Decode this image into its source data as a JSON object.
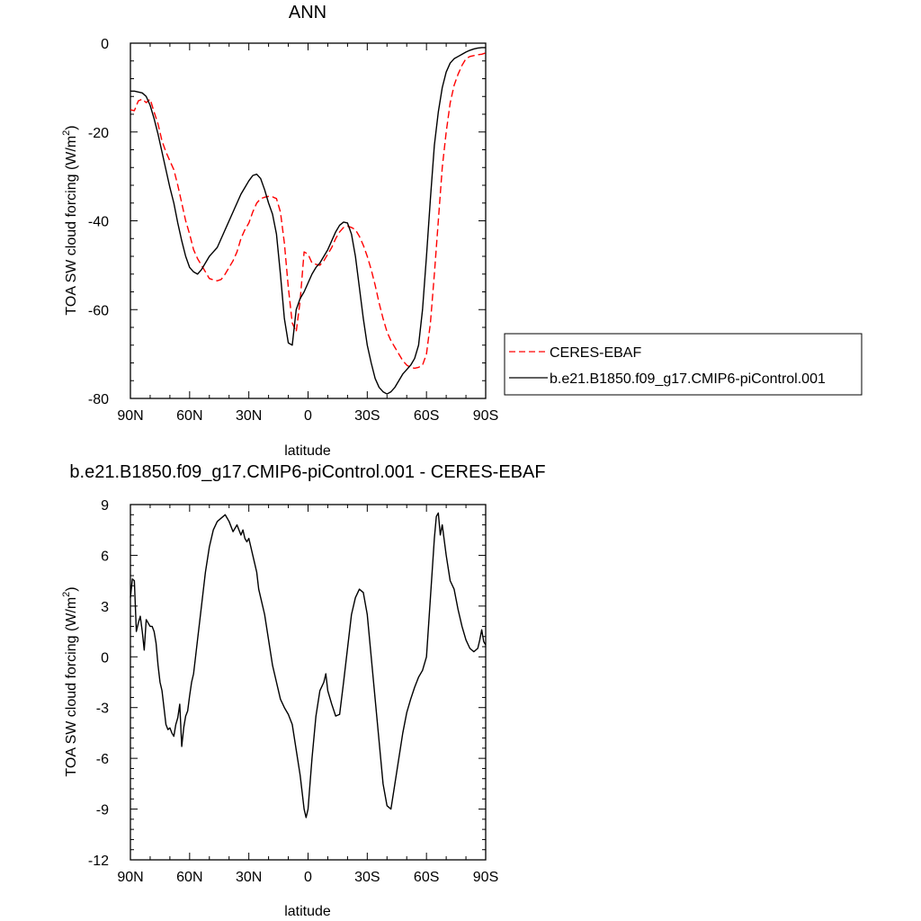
{
  "chart_data": [
    {
      "type": "line",
      "title": "ANN",
      "xlabel": "latitude",
      "ylabel": "TOA SW cloud forcing (W/m2)",
      "ylabel_main": "TOA SW cloud forcing (W/m",
      "ylabel_sup": "2",
      "ylabel_tail": ")",
      "xlim": [
        -90,
        90
      ],
      "ylim": [
        -80,
        0
      ],
      "x_ticks": [
        -90,
        -60,
        -30,
        0,
        30,
        60,
        90
      ],
      "x_tick_labels": [
        "90N",
        "60N",
        "30N",
        "0",
        "30S",
        "60S",
        "90S"
      ],
      "y_ticks": [
        0,
        -20,
        -40,
        -60,
        -80
      ],
      "y_tick_labels": [
        "0",
        "-20",
        "-40",
        "-60",
        "-80"
      ],
      "legend_position": "right",
      "series": [
        {
          "name": "CERES-EBAF",
          "color": "#ff0000",
          "dash": "dashed",
          "x": [
            -90,
            -88,
            -86,
            -84,
            -82,
            -80,
            -78,
            -76,
            -74,
            -72,
            -70,
            -68,
            -66,
            -64,
            -62,
            -60,
            -58,
            -56,
            -54,
            -52,
            -50,
            -48,
            -46,
            -44,
            -42,
            -40,
            -38,
            -36,
            -34,
            -32,
            -30,
            -28,
            -26,
            -24,
            -22,
            -20,
            -18,
            -16,
            -14,
            -12,
            -10,
            -8,
            -6,
            -4,
            -2,
            0,
            2,
            4,
            6,
            8,
            10,
            12,
            14,
            16,
            18,
            20,
            22,
            24,
            26,
            28,
            30,
            32,
            34,
            36,
            38,
            40,
            42,
            44,
            46,
            48,
            50,
            52,
            54,
            56,
            58,
            60,
            62,
            64,
            66,
            68,
            70,
            72,
            74,
            76,
            78,
            80,
            82,
            84,
            86,
            88,
            90
          ],
          "values": [
            -15.0,
            -15.2,
            -13.0,
            -12.6,
            -13.4,
            -12.6,
            -15.5,
            -18.2,
            -22.0,
            -24.5,
            -26.5,
            -28.5,
            -32.0,
            -36.0,
            -40.0,
            -43.0,
            -46.5,
            -48.5,
            -50.0,
            -51.5,
            -53.0,
            -53.3,
            -53.5,
            -53.2,
            -52.0,
            -50.5,
            -49.0,
            -47.0,
            -44.0,
            -42.0,
            -40.5,
            -38.0,
            -36.0,
            -35.0,
            -34.7,
            -34.5,
            -34.6,
            -35.0,
            -38.0,
            -45.0,
            -55.0,
            -63.0,
            -65.0,
            -58.0,
            -47.0,
            -47.5,
            -49.5,
            -49.8,
            -50.0,
            -49.0,
            -47.5,
            -46.0,
            -44.0,
            -42.5,
            -41.5,
            -41.2,
            -41.5,
            -42.0,
            -43.5,
            -45.5,
            -48.0,
            -51.0,
            -54.5,
            -58.5,
            -62.0,
            -65.0,
            -67.0,
            -68.5,
            -70.0,
            -71.5,
            -72.5,
            -73.0,
            -73.2,
            -73.0,
            -72.5,
            -70.0,
            -63.0,
            -52.0,
            -40.0,
            -28.0,
            -20.0,
            -13.5,
            -9.5,
            -7.0,
            -5.0,
            -3.5,
            -3.0,
            -2.8,
            -2.6,
            -2.5,
            -2.2
          ]
        },
        {
          "name": "b.e21.B1850.f09_g17.CMIP6-piControl.001",
          "color": "#000000",
          "dash": "solid",
          "x": [
            -90,
            -88,
            -86,
            -84,
            -82,
            -80,
            -78,
            -76,
            -74,
            -72,
            -70,
            -68,
            -66,
            -64,
            -62,
            -60,
            -58,
            -56,
            -54,
            -52,
            -50,
            -48,
            -46,
            -44,
            -42,
            -40,
            -38,
            -36,
            -34,
            -32,
            -30,
            -28,
            -26,
            -24,
            -22,
            -20,
            -18,
            -16,
            -14,
            -12,
            -10,
            -8,
            -6,
            -4,
            -2,
            0,
            2,
            4,
            6,
            8,
            10,
            12,
            14,
            16,
            18,
            20,
            22,
            24,
            26,
            28,
            30,
            32,
            34,
            36,
            38,
            40,
            42,
            44,
            46,
            48,
            50,
            52,
            54,
            56,
            58,
            60,
            62,
            64,
            66,
            68,
            70,
            72,
            74,
            76,
            78,
            80,
            82,
            84,
            86,
            88,
            90
          ],
          "values": [
            -10.8,
            -10.8,
            -11.0,
            -11.2,
            -12.0,
            -14.0,
            -17.0,
            -20.5,
            -24.5,
            -28.5,
            -32.5,
            -36.0,
            -40.5,
            -44.5,
            -48.0,
            -50.5,
            -51.5,
            -52.0,
            -51.0,
            -49.5,
            -48.0,
            -47.0,
            -46.0,
            -44.0,
            -42.0,
            -40.0,
            -38.0,
            -36.0,
            -34.0,
            -32.5,
            -31.0,
            -29.8,
            -29.5,
            -30.5,
            -33.0,
            -36.0,
            -38.5,
            -43.0,
            -52.0,
            -62.0,
            -67.5,
            -68.0,
            -60.0,
            -57.5,
            -56.0,
            -54.0,
            -52.0,
            -50.5,
            -49.5,
            -48.0,
            -46.5,
            -44.5,
            -42.5,
            -41.0,
            -40.3,
            -40.5,
            -43.0,
            -48.0,
            -55.0,
            -62.0,
            -68.0,
            -72.0,
            -75.5,
            -77.5,
            -78.5,
            -79.0,
            -78.5,
            -77.5,
            -76.0,
            -74.5,
            -73.5,
            -72.5,
            -71.0,
            -68.0,
            -60.0,
            -48.0,
            -35.0,
            -23.0,
            -15.5,
            -10.0,
            -6.5,
            -4.5,
            -3.5,
            -3.0,
            -2.5,
            -2.0,
            -1.6,
            -1.3,
            -1.1,
            -1.0,
            -1.0
          ]
        }
      ]
    },
    {
      "type": "line",
      "title": "b.e21.B1850.f09_g17.CMIP6-piControl.001 - CERES-EBAF",
      "xlabel": "latitude",
      "ylabel": "TOA SW cloud forcing (W/m2)",
      "ylabel_main": "TOA SW cloud forcing (W/m",
      "ylabel_sup": "2",
      "ylabel_tail": ")",
      "xlim": [
        -90,
        90
      ],
      "ylim": [
        -12,
        9
      ],
      "x_ticks": [
        -90,
        -60,
        -30,
        0,
        30,
        60,
        90
      ],
      "x_tick_labels": [
        "90N",
        "60N",
        "30N",
        "0",
        "30S",
        "60S",
        "90S"
      ],
      "y_ticks": [
        9,
        6,
        3,
        0,
        -3,
        -6,
        -9,
        -12
      ],
      "y_tick_labels": [
        "9",
        "6",
        "3",
        "0",
        "-3",
        "-6",
        "-9",
        "-12"
      ],
      "series": [
        {
          "color": "#000000",
          "dash": "solid",
          "x": [
            -90,
            -89,
            -88,
            -87,
            -86,
            -85,
            -84,
            -83,
            -82,
            -81,
            -80,
            -79,
            -78,
            -77,
            -76,
            -75,
            -74,
            -73,
            -72,
            -71,
            -70,
            -69,
            -68,
            -67,
            -66,
            -65,
            -64,
            -63,
            -62,
            -61,
            -60,
            -59,
            -58,
            -57,
            -56,
            -55,
            -54,
            -53,
            -52,
            -50,
            -48,
            -46,
            -44,
            -42,
            -40,
            -38,
            -36,
            -35,
            -34,
            -33,
            -32,
            -31,
            -30,
            -29,
            -28,
            -27,
            -26,
            -25,
            -24,
            -22,
            -20,
            -18,
            -16,
            -14,
            -12,
            -10,
            -8,
            -6,
            -4,
            -3,
            -2,
            -1,
            0,
            1,
            2,
            4,
            6,
            8,
            9,
            10,
            12,
            14,
            16,
            18,
            20,
            22,
            24,
            26,
            28,
            30,
            32,
            34,
            36,
            38,
            40,
            42,
            44,
            46,
            48,
            50,
            52,
            54,
            56,
            58,
            60,
            62,
            64,
            65,
            66,
            67,
            68,
            70,
            72,
            74,
            76,
            78,
            80,
            82,
            84,
            86,
            87,
            88,
            89,
            90
          ],
          "values": [
            3.5,
            4.6,
            4.5,
            1.5,
            2.0,
            2.4,
            1.5,
            0.4,
            2.2,
            2.0,
            1.8,
            1.8,
            1.5,
            0.8,
            -0.5,
            -1.5,
            -2.0,
            -3.0,
            -4.0,
            -4.3,
            -4.2,
            -4.5,
            -4.7,
            -4.0,
            -3.6,
            -2.8,
            -5.3,
            -4.2,
            -3.5,
            -3.2,
            -2.3,
            -1.5,
            -1.0,
            0.0,
            1.0,
            2.0,
            3.0,
            4.0,
            5.0,
            6.5,
            7.5,
            8.0,
            8.2,
            8.4,
            8.0,
            7.4,
            7.8,
            7.5,
            7.2,
            7.5,
            7.0,
            6.8,
            7.0,
            6.5,
            6.0,
            5.5,
            5.0,
            4.0,
            3.5,
            2.5,
            1.0,
            -0.5,
            -1.5,
            -2.5,
            -3.0,
            -3.4,
            -4.0,
            -5.5,
            -7.0,
            -8.0,
            -9.0,
            -9.5,
            -9.0,
            -7.5,
            -6.0,
            -3.5,
            -2.0,
            -1.5,
            -1.0,
            -2.0,
            -2.8,
            -3.5,
            -3.4,
            -1.5,
            0.5,
            2.5,
            3.5,
            4.0,
            3.8,
            2.5,
            0.0,
            -2.5,
            -5.0,
            -7.5,
            -8.8,
            -9.0,
            -7.5,
            -6.0,
            -4.5,
            -3.3,
            -2.5,
            -1.8,
            -1.2,
            -0.8,
            0.0,
            3.5,
            7.0,
            8.3,
            8.5,
            7.2,
            7.8,
            6.0,
            4.5,
            4.0,
            2.8,
            1.8,
            1.0,
            0.5,
            0.3,
            0.5,
            1.0,
            1.6,
            0.9,
            0.7
          ]
        }
      ]
    }
  ]
}
